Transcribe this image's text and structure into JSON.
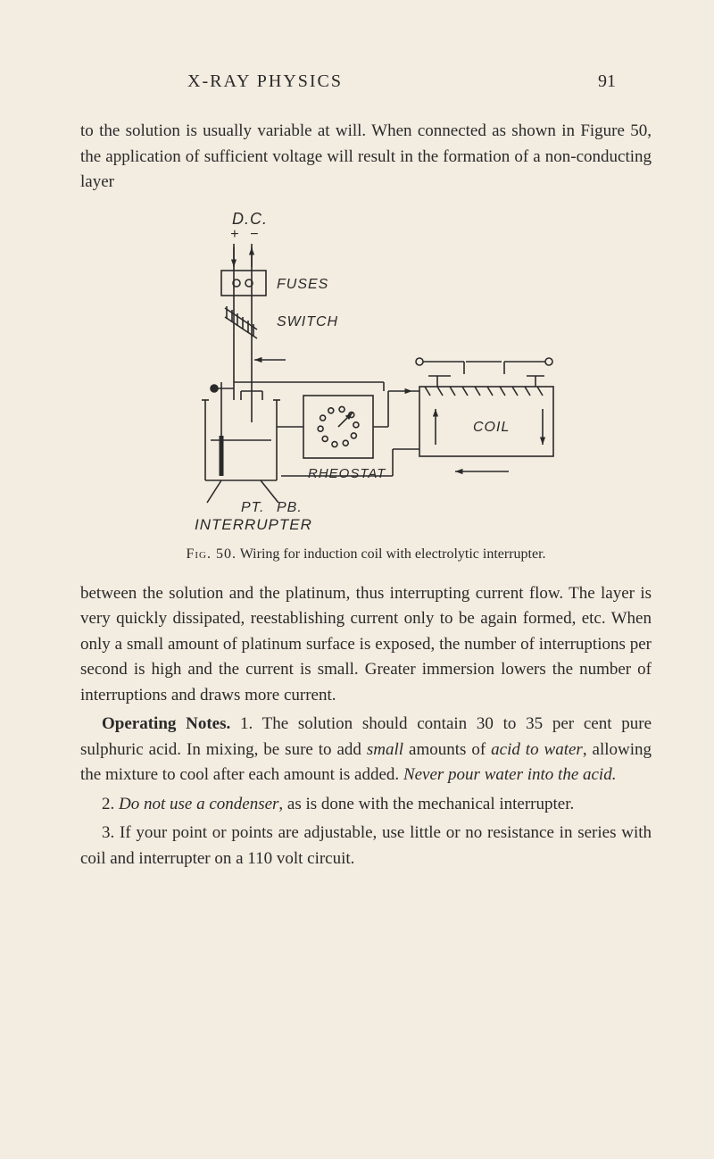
{
  "header": {
    "running_head": "X-RAY PHYSICS",
    "page_number": "91"
  },
  "para1": "to the solution is usually variable at will. When connected as shown in Figure 50, the application of sufficient voltage will result in the formation of a non-conducting layer",
  "figure": {
    "labels": {
      "dc": "D.C.",
      "plus": "+",
      "minus": "−",
      "fuses": "FUSES",
      "switch": "SWITCH",
      "rheostat": "RHEOSTAT",
      "coil": "COIL",
      "pt": "PT.",
      "pb": "PB.",
      "interrupter": "INTERRUPTER"
    },
    "caption_prefix": "Fig. 50.",
    "caption_text": "Wiring for induction coil with electrolytic interrupter.",
    "colors": {
      "stroke": "#2a2a2a",
      "bg": "#f3ece0"
    },
    "stroke_width": 1.6
  },
  "para2": "between the solution and the platinum, thus interrupting current flow. The layer is very quickly dissipated, reestab­lishing current only to be again formed, etc. When only a small amount of platinum surface is exposed, the number of interruptions per second is high and the current is small. Greater immersion lowers the number of interruptions and draws more current.",
  "para3_lead": "Operating Notes.",
  "para3_rest": " 1. The solution should contain 30 to 35 per cent pure sulphuric acid. In mixing, be sure to add ",
  "para3_small": "small",
  "para3_rest2": " amounts of ",
  "para3_acid": "acid to water",
  "para3_rest3": ", allowing the mixture to cool after each amount is added. ",
  "para3_never": "Never pour water into the acid.",
  "para4a": "2. ",
  "para4_do": "Do not use a condenser",
  "para4b": ", as is done with the mechanical interrupter.",
  "para5": "3. If your point or points are adjustable, use little or no resistance in series with coil and interrupter on a 110 volt circuit."
}
